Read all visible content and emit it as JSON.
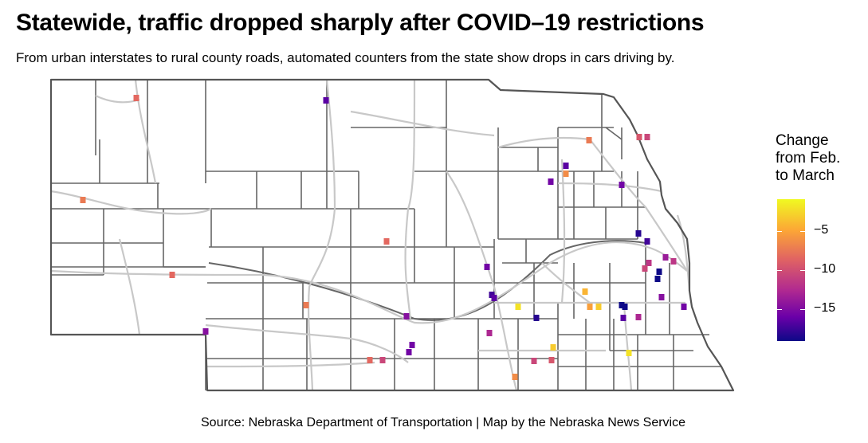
{
  "title": "Statewide, traffic dropped sharply after COVID–19 restrictions",
  "subtitle": "From urban interstates to rural county roads, automated counters from the state show drops in cars driving by.",
  "source": "Source: Nebraska Department of Transportation | Map by the Nebraska News Service",
  "legend": {
    "title_lines": [
      "Change",
      "from Feb.",
      "to March"
    ],
    "ticks": [
      "−5",
      "−10",
      "−15"
    ],
    "tick_values": [
      -5,
      -10,
      -15
    ],
    "min_value": -19,
    "max_value": -1
  },
  "colors": {
    "county_border": "#666666",
    "road": "#c8c8c8",
    "scale": [
      "#f0f921",
      "#fca636",
      "#e16462",
      "#b12a90",
      "#6a00a8",
      "#0d0887"
    ]
  },
  "map_data": {
    "region": "Nebraska",
    "counters_change_pct": [
      -8,
      -16,
      -7,
      -8,
      -8,
      -15,
      -7,
      -14,
      -14,
      -2,
      -8,
      -10,
      -15,
      -15,
      -18,
      -17,
      -16,
      -19,
      -19,
      -16,
      -18,
      -17,
      -12,
      -14,
      -15,
      -4,
      -7,
      -6,
      -5,
      -3,
      -19,
      -19,
      -13,
      -11,
      -11,
      -16,
      -9,
      -15,
      -12,
      -9,
      -10,
      -10,
      -3,
      -6,
      -2,
      -15,
      -10
    ]
  }
}
